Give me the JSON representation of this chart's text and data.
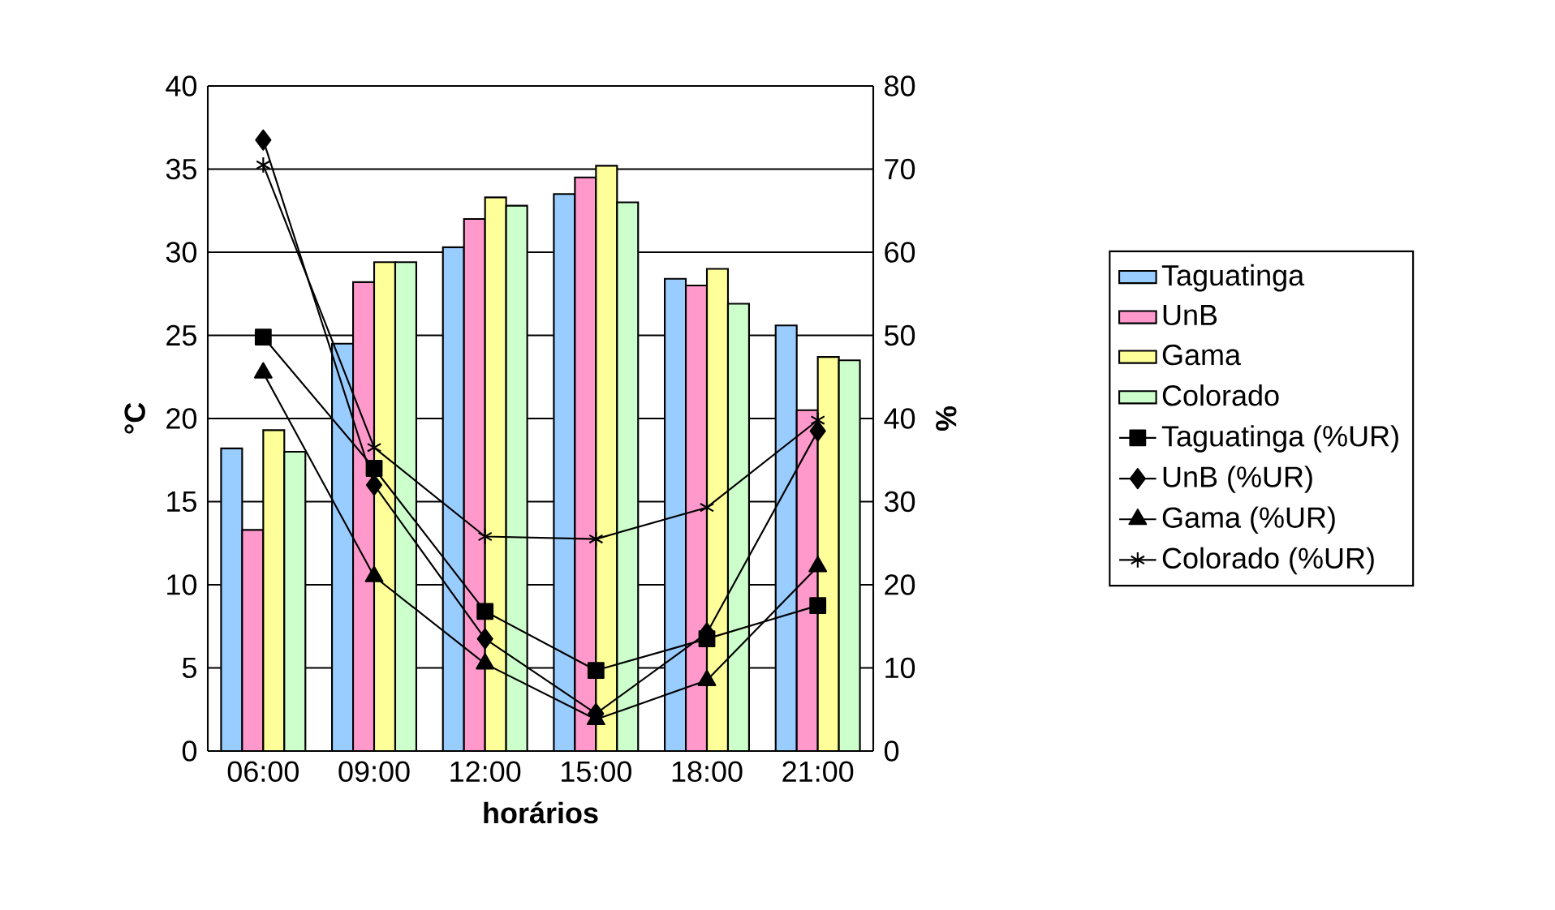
{
  "chart_data": {
    "type": "bar",
    "xlabel": "horários",
    "ylabel": "°C",
    "y2label": "%",
    "categories": [
      "06:00",
      "09:00",
      "12:00",
      "15:00",
      "18:00",
      "21:00"
    ],
    "ylim": [
      0,
      40
    ],
    "yticks": [
      0,
      5,
      10,
      15,
      20,
      25,
      30,
      35,
      40
    ],
    "y2lim": [
      0,
      80
    ],
    "y2ticks": [
      0,
      10,
      20,
      30,
      40,
      50,
      60,
      70,
      80
    ],
    "grid": "y",
    "legend": "right",
    "series": [
      {
        "name": "Taguatinga",
        "color": "#99ccff",
        "values": [
          18.2,
          24.5,
          30.3,
          33.5,
          28.4,
          25.6
        ]
      },
      {
        "name": "UnB",
        "color": "#ff99cc",
        "values": [
          13.3,
          28.2,
          32.0,
          34.5,
          28.0,
          20.5
        ]
      },
      {
        "name": "Gama",
        "color": "#ffff99",
        "values": [
          19.3,
          29.4,
          33.3,
          35.2,
          29.0,
          23.7
        ]
      },
      {
        "name": "Colorado",
        "color": "#ccffcc",
        "values": [
          18.0,
          29.4,
          32.8,
          33.0,
          26.9,
          23.5
        ]
      },
      {
        "name": "Taguatinga (%UR)",
        "type": "line",
        "axis": "y2",
        "marker": "square",
        "color": "#000000",
        "values": [
          49.8,
          34.0,
          16.8,
          9.7,
          13.5,
          17.5
        ]
      },
      {
        "name": "UnB (%UR)",
        "type": "line",
        "axis": "y2",
        "marker": "diamond",
        "color": "#000000",
        "values": [
          73.5,
          32.0,
          13.5,
          4.5,
          14.2,
          38.5
        ]
      },
      {
        "name": "Gama (%UR)",
        "type": "line",
        "axis": "y2",
        "marker": "triangle",
        "color": "#000000",
        "values": [
          45.5,
          21.0,
          10.5,
          3.8,
          8.5,
          22.2
        ]
      },
      {
        "name": "Colorado (%UR)",
        "type": "line",
        "axis": "y2",
        "marker": "cross",
        "color": "#000000",
        "values": [
          70.5,
          36.5,
          25.8,
          25.5,
          29.3,
          39.8
        ]
      }
    ]
  }
}
